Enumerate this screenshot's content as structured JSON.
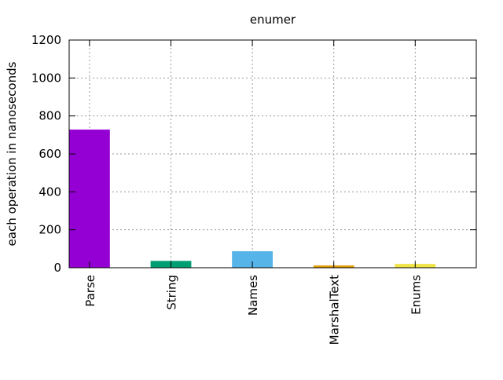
{
  "chart_data": {
    "type": "bar",
    "title": "enumer",
    "xlabel": "",
    "ylabel": "each operation in nanoseconds",
    "categories": [
      "Parse",
      "String",
      "Names",
      "MarshalText",
      "Enums"
    ],
    "values": [
      728,
      36,
      87,
      12,
      20
    ],
    "colors": [
      "#9400d3",
      "#009e73",
      "#56b4e9",
      "#e69f00",
      "#f0e442"
    ],
    "ylim": [
      0,
      1200
    ],
    "yticks": [
      0,
      200,
      400,
      600,
      800,
      1000,
      1200
    ],
    "ytick_labels": [
      "0",
      "200",
      "400",
      "600",
      "800",
      "1000",
      "1200"
    ],
    "grid": true,
    "legend": "none"
  }
}
